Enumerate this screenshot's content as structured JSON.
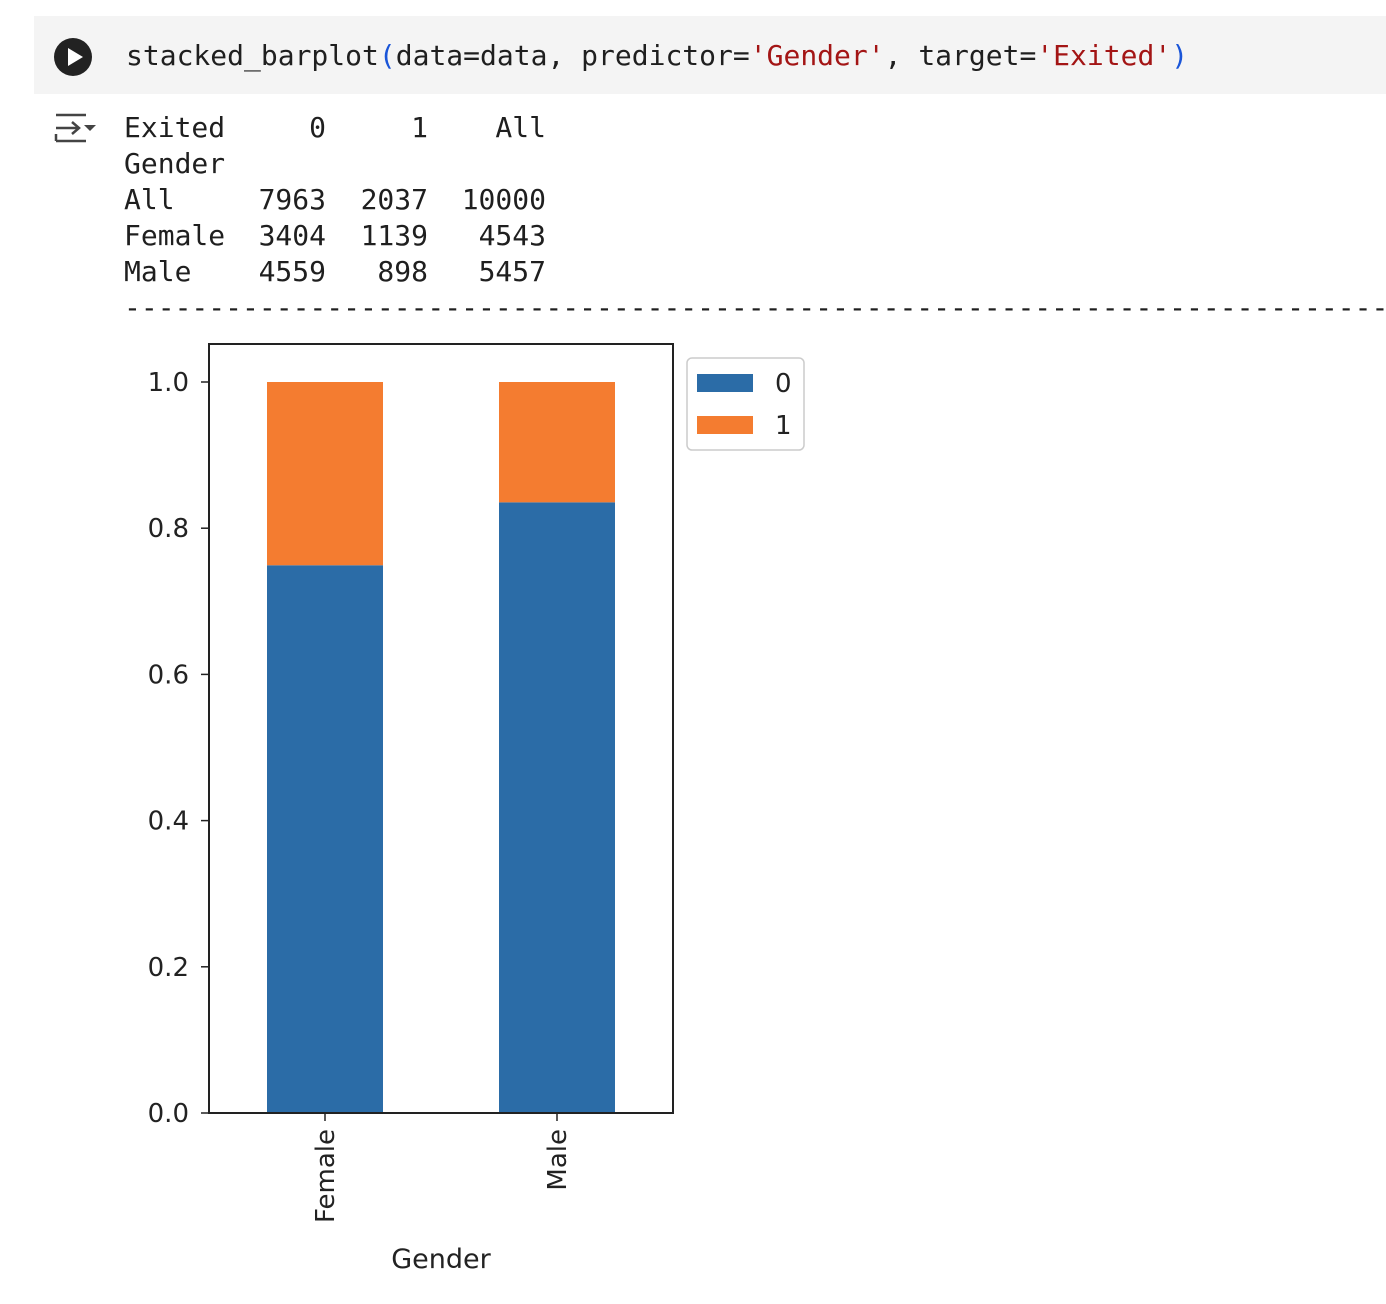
{
  "code": {
    "func": "stacked_barplot",
    "open_paren": "(",
    "args_plain": "data=data, predictor=",
    "predictor_str": "'Gender'",
    "sep": ", target=",
    "target_str": "'Exited'",
    "close_paren": ")"
  },
  "run_button": {
    "icon": "play-icon"
  },
  "output_icon": "output-collapse-icon",
  "table": {
    "header": [
      "Exited",
      "0",
      "1",
      "All"
    ],
    "index_name": "Gender",
    "rows": [
      {
        "label": "All",
        "c0": "7963",
        "c1": "2037",
        "all": "10000"
      },
      {
        "label": "Female",
        "c0": "3404",
        "c1": "1139",
        "all": "4543"
      },
      {
        "label": "Male",
        "c0": "4559",
        "c1": "898",
        "all": "5457"
      }
    ]
  },
  "separator": "------------------------------------------------------------------------------------------------------------------------",
  "chart_data": {
    "type": "bar",
    "stacked": true,
    "categories": [
      "Female",
      "Male"
    ],
    "series": [
      {
        "name": "0",
        "color": "#2b6ca7",
        "values": [
          0.7493,
          0.8354
        ]
      },
      {
        "name": "1",
        "color": "#f47c30",
        "values": [
          0.2507,
          0.1646
        ]
      }
    ],
    "xlabel": "Gender",
    "ylabel": "",
    "ylim": [
      0,
      1.05
    ],
    "yticks": [
      "0.0",
      "0.2",
      "0.4",
      "0.6",
      "0.8",
      "1.0"
    ],
    "legend": "outside-upper-right",
    "grid": false
  }
}
